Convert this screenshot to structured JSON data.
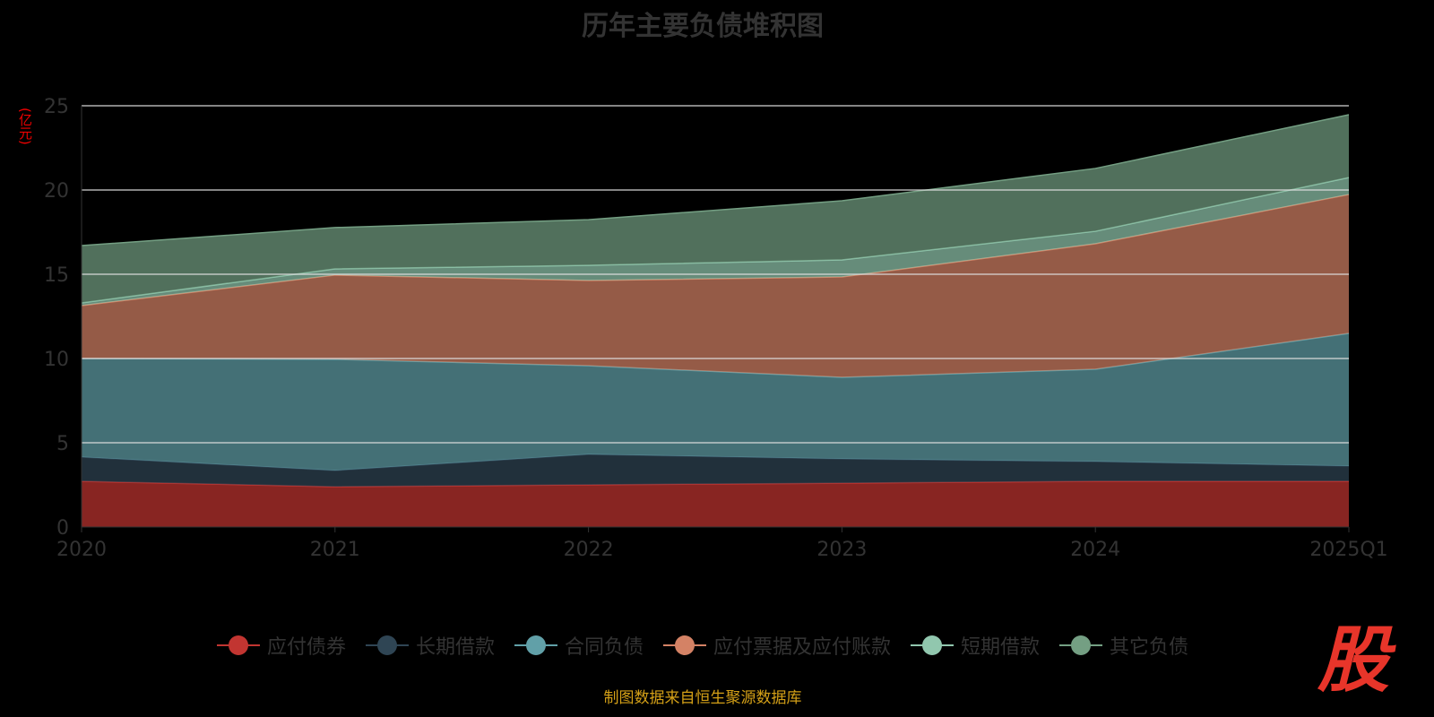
{
  "chart_data": {
    "type": "area",
    "stacked": true,
    "title": "历年主要负债堆积图",
    "ylabel": "(亿元)",
    "xlabel": "",
    "categories": [
      "2020",
      "2021",
      "2022",
      "2023",
      "2024",
      "2025Q1"
    ],
    "ylim": [
      0,
      25
    ],
    "yticks": [
      0,
      5,
      10,
      15,
      20,
      25
    ],
    "grid": true,
    "legend_position": "bottom",
    "series": [
      {
        "name": "应付债券",
        "color": "#c23531",
        "values": [
          2.71,
          2.39,
          2.5,
          2.6,
          2.71,
          2.71
        ]
      },
      {
        "name": "长期借款",
        "color": "#2f4554",
        "values": [
          1.44,
          0.96,
          1.81,
          1.44,
          1.17,
          0.91
        ]
      },
      {
        "name": "合同负债",
        "color": "#61a0a8",
        "values": [
          5.85,
          6.6,
          5.26,
          4.84,
          5.48,
          7.87
        ]
      },
      {
        "name": "应付票据及应付账款",
        "color": "#d48265",
        "values": [
          3.14,
          5.0,
          5.06,
          5.96,
          7.45,
          8.24
        ]
      },
      {
        "name": "短期借款",
        "color": "#91c7ae",
        "values": [
          0.16,
          0.37,
          0.9,
          1.01,
          0.74,
          1.01
        ]
      },
      {
        "name": "其它负债",
        "color": "#749f83",
        "values": [
          3.4,
          2.45,
          2.71,
          3.51,
          3.73,
          3.73
        ]
      }
    ]
  },
  "source": "制图数据来自恒生聚源数据库",
  "logo_text": "股"
}
